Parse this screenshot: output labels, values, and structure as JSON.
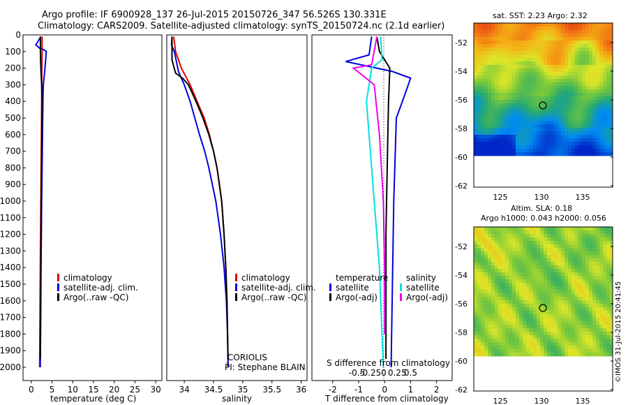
{
  "header": {
    "title_line1": "Argo profile: IF 6900928_137 26-Jul-2015 20150726_347 56.526S 130.331E",
    "title_line2": "Climatology: CARS2009. Satellite-adjusted climatology: synTS_20150724.nc (2.1d earlier)"
  },
  "colors": {
    "climatology": "#dd0000",
    "satellite": "#0000dd",
    "argo": "#000000",
    "sal_sat": "#00e0e0",
    "sal_argo": "#ee00ee"
  },
  "chart_data": [
    {
      "id": "temperature",
      "type": "line",
      "xlabel": "temperature (deg C)",
      "ylabel": "",
      "xlim": [
        -2,
        31.5
      ],
      "ylim": [
        2080,
        0
      ],
      "xticks": [
        0,
        5,
        10,
        15,
        20,
        25,
        30
      ],
      "yticks": [
        0,
        100,
        200,
        300,
        400,
        500,
        600,
        700,
        800,
        900,
        1000,
        1100,
        1200,
        1300,
        1400,
        1500,
        1600,
        1700,
        1800,
        1900,
        2000
      ],
      "legend": [
        "climatology",
        "satellite-adj. clim.",
        "Argo(..raw -QC)"
      ],
      "series": [
        {
          "name": "climatology",
          "color": "#dd0000",
          "points": [
            [
              2.6,
              10
            ],
            [
              2.6,
              100
            ],
            [
              2.55,
              200
            ],
            [
              2.5,
              400
            ],
            [
              2.4,
              700
            ],
            [
              2.3,
              1000
            ],
            [
              2.2,
              1300
            ],
            [
              2.1,
              1600
            ],
            [
              2.0,
              2000
            ]
          ]
        },
        {
          "name": "satellite-adj. clim.",
          "color": "#0000dd",
          "points": [
            [
              2.3,
              10
            ],
            [
              1.1,
              60
            ],
            [
              2.0,
              80
            ],
            [
              3.1,
              90
            ],
            [
              3.6,
              100
            ],
            [
              3.3,
              200
            ],
            [
              2.9,
              300
            ],
            [
              2.8,
              400
            ],
            [
              2.7,
              600
            ],
            [
              2.5,
              1000
            ],
            [
              2.35,
              1400
            ],
            [
              2.25,
              1800
            ],
            [
              2.15,
              2000
            ]
          ]
        },
        {
          "name": "Argo(..raw -QC)",
          "color": "#000000",
          "points": [
            [
              2.2,
              10
            ],
            [
              2.2,
              100
            ],
            [
              2.3,
              200
            ],
            [
              2.5,
              300
            ],
            [
              2.6,
              400
            ],
            [
              2.55,
              600
            ],
            [
              2.4,
              1000
            ],
            [
              2.3,
              1400
            ],
            [
              2.2,
              1800
            ],
            [
              2.15,
              1950
            ]
          ]
        }
      ]
    },
    {
      "id": "salinity",
      "type": "line",
      "xlabel": "salinity",
      "xlim": [
        33.7,
        36.1
      ],
      "ylim": [
        2080,
        0
      ],
      "xticks": [
        34,
        34.5,
        35,
        35.5,
        36
      ],
      "legend": [
        "climatology",
        "satellite-adj. clim.",
        "Argo(..raw -QC)"
      ],
      "annotations": [
        "CORIOLIS",
        "PI: Stephane BLAIN"
      ],
      "series": [
        {
          "name": "climatology",
          "color": "#dd0000",
          "points": [
            [
              33.82,
              10
            ],
            [
              33.85,
              100
            ],
            [
              33.95,
              200
            ],
            [
              34.1,
              300
            ],
            [
              34.22,
              400
            ],
            [
              34.34,
              500
            ],
            [
              34.43,
              600
            ],
            [
              34.5,
              700
            ],
            [
              34.56,
              800
            ],
            [
              34.6,
              900
            ],
            [
              34.64,
              1000
            ],
            [
              34.68,
              1200
            ],
            [
              34.71,
              1400
            ],
            [
              34.73,
              1600
            ],
            [
              34.74,
              1800
            ],
            [
              34.75,
              2000
            ]
          ]
        },
        {
          "name": "satellite-adj. clim.",
          "color": "#0000dd",
          "points": [
            [
              33.79,
              10
            ],
            [
              33.78,
              60
            ],
            [
              33.83,
              100
            ],
            [
              33.9,
              220
            ],
            [
              34.0,
              300
            ],
            [
              34.1,
              400
            ],
            [
              34.18,
              500
            ],
            [
              34.26,
              600
            ],
            [
              34.35,
              700
            ],
            [
              34.42,
              800
            ],
            [
              34.48,
              900
            ],
            [
              34.54,
              1000
            ],
            [
              34.62,
              1200
            ],
            [
              34.68,
              1400
            ],
            [
              34.72,
              1600
            ],
            [
              34.74,
              1800
            ],
            [
              34.75,
              2000
            ]
          ]
        },
        {
          "name": "Argo(..raw -QC)",
          "color": "#000000",
          "points": [
            [
              33.79,
              10
            ],
            [
              33.79,
              150
            ],
            [
              33.85,
              230
            ],
            [
              33.97,
              260
            ],
            [
              34.07,
              300
            ],
            [
              34.2,
              400
            ],
            [
              34.32,
              500
            ],
            [
              34.42,
              600
            ],
            [
              34.5,
              700
            ],
            [
              34.56,
              800
            ],
            [
              34.6,
              900
            ],
            [
              34.64,
              1000
            ],
            [
              34.68,
              1200
            ],
            [
              34.71,
              1400
            ],
            [
              34.73,
              1600
            ],
            [
              34.74,
              1800
            ],
            [
              34.75,
              1950
            ]
          ]
        }
      ]
    },
    {
      "id": "difference",
      "type": "line",
      "xlabel": "T difference from climatology",
      "xlabel_top": "S difference from climatology",
      "xlim": [
        -2.8,
        2.6
      ],
      "ylim": [
        2080,
        0
      ],
      "xticks": [
        -2,
        -1,
        0,
        1,
        2
      ],
      "xticks_top": [
        -0.5,
        -0.25,
        0,
        0.25,
        0.5
      ],
      "legend_temperature_title": "temperature",
      "legend_salinity_title": "salinity",
      "legend_temperature": [
        "satellite",
        "Argo(-adj)"
      ],
      "legend_salinity": [
        "satellite",
        "Argo(-adj)"
      ],
      "series": [
        {
          "name": "T satellite",
          "color": "#0000dd",
          "points": [
            [
              -0.5,
              10
            ],
            [
              -0.6,
              120
            ],
            [
              -1.5,
              160
            ],
            [
              -0.3,
              200
            ],
            [
              0.3,
              220
            ],
            [
              1.0,
              260
            ],
            [
              0.8,
              350
            ],
            [
              0.45,
              500
            ],
            [
              0.35,
              1000
            ],
            [
              0.3,
              1500
            ],
            [
              0.25,
              2000
            ]
          ]
        },
        {
          "name": "T Argo(-adj)",
          "color": "#000000",
          "points": [
            [
              -0.3,
              10
            ],
            [
              -0.2,
              100
            ],
            [
              0.2,
              200
            ],
            [
              0.15,
              400
            ],
            [
              0.1,
              800
            ],
            [
              0.05,
              1200
            ],
            [
              0.05,
              1600
            ],
            [
              0.05,
              1950
            ]
          ]
        },
        {
          "name": "S satellite",
          "color": "#00e0e0",
          "points": [
            [
              -0.15,
              10
            ],
            [
              -0.1,
              150
            ],
            [
              -0.5,
              200
            ],
            [
              -0.7,
              400
            ],
            [
              -0.6,
              600
            ],
            [
              -0.4,
              1000
            ],
            [
              -0.2,
              1400
            ],
            [
              -0.1,
              1800
            ],
            [
              -0.05,
              2000
            ]
          ]
        },
        {
          "name": "S Argo(-adj)",
          "color": "#ee00ee",
          "points": [
            [
              -0.3,
              10
            ],
            [
              -0.5,
              180
            ],
            [
              -1.2,
              200
            ],
            [
              -0.4,
              300
            ],
            [
              -0.2,
              600
            ],
            [
              -0.05,
              1000
            ],
            [
              0,
              1400
            ],
            [
              0,
              1800
            ]
          ]
        }
      ]
    }
  ],
  "maps": {
    "sst": {
      "title": "sat. SST: 2.23  Argo: 2.32",
      "yticks": [
        "-52",
        "-54",
        "-56",
        "-58",
        "-60",
        "-62"
      ],
      "xticks": [
        "125",
        "130",
        "135"
      ]
    },
    "sla": {
      "title1": "Altim. SLA: 0.18",
      "title2": "Argo h1000: 0.043 h2000: 0.056",
      "yticks": [
        "-52",
        "-54",
        "-56",
        "-58",
        "-60",
        "-62"
      ],
      "xticks": [
        "125",
        "130",
        "135"
      ]
    }
  },
  "footer": {
    "credit": "©IMOS 31-Jul-2015 20:41:45"
  }
}
